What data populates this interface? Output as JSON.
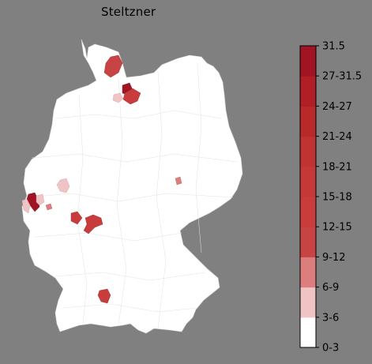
{
  "title": "Steltzner",
  "colorbar": {
    "bins": [
      {
        "label": "0-3",
        "color": "#ffffff"
      },
      {
        "label": "3-6",
        "color": "#f0c4c4"
      },
      {
        "label": "6-9",
        "color": "#dd7e7e"
      },
      {
        "label": "9-12",
        "color": "#c84444"
      },
      {
        "label": "12-15",
        "color": "#c83c3c"
      },
      {
        "label": "15-18",
        "color": "#c43838"
      },
      {
        "label": "18-21",
        "color": "#bf3333"
      },
      {
        "label": "21-24",
        "color": "#b82a2a"
      },
      {
        "label": "24-27",
        "color": "#b01e26"
      },
      {
        "label": "27-31.5",
        "color": "#a01424"
      }
    ],
    "max_label": "31.5"
  },
  "regions": [
    {
      "name": "Schleswig-Flensburg area",
      "bin": "9-12"
    },
    {
      "name": "Luebeck area",
      "bin": "27-31.5"
    },
    {
      "name": "Ostholstein area",
      "bin": "12-15"
    },
    {
      "name": "Pinneberg area",
      "bin": "3-6"
    },
    {
      "name": "Aachen area",
      "bin": "27-31.5"
    },
    {
      "name": "Dueren area",
      "bin": "3-6"
    },
    {
      "name": "Euskirchen area",
      "bin": "6-9"
    },
    {
      "name": "Rhein-Sieg area",
      "bin": "3-6"
    },
    {
      "name": "Giessen area",
      "bin": "12-15"
    },
    {
      "name": "Frankfurt east area",
      "bin": "12-15"
    },
    {
      "name": "Leipzig area",
      "bin": "6-9"
    },
    {
      "name": "Reutlingen area",
      "bin": "12-15"
    }
  ]
}
